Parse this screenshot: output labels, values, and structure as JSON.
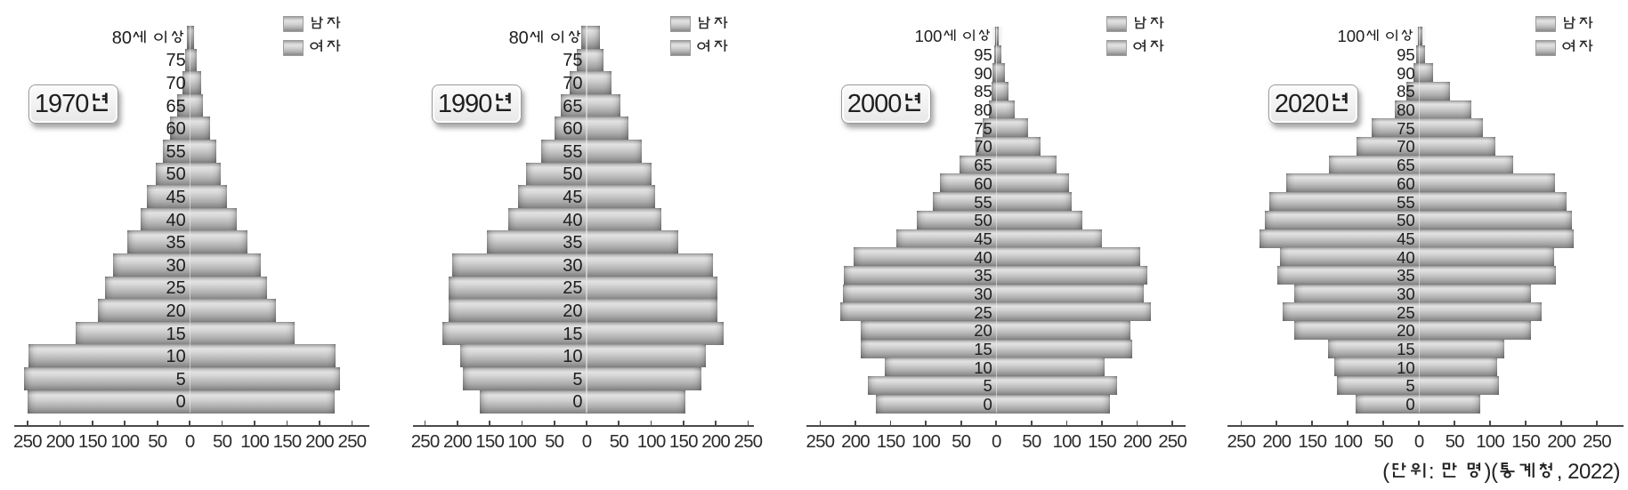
{
  "caption": "(단위: 만 명)(통계청, 2022)",
  "legend": {
    "male_label": "남자",
    "female_label": "여자"
  },
  "axis": {
    "tick_labels": [
      "250",
      "200",
      "150",
      "100",
      "50",
      "0",
      "50",
      "100",
      "150",
      "200",
      "250"
    ],
    "tick_step": 50,
    "x_max": 250,
    "unit_label": "만 명"
  },
  "chart_data": [
    {
      "type": "bar",
      "subtype": "population-pyramid",
      "title": "1970년",
      "xlim": [
        -250,
        250
      ],
      "categories": [
        "0",
        "5",
        "10",
        "15",
        "20",
        "25",
        "30",
        "35",
        "40",
        "45",
        "50",
        "55",
        "60",
        "65",
        "70",
        "75",
        "80세 이상"
      ],
      "series": [
        {
          "name": "남자",
          "side": "left",
          "values": [
            250,
            256,
            249,
            176,
            142,
            131,
            118,
            97,
            76,
            66,
            52,
            42,
            30,
            19,
            12,
            7,
            4
          ]
        },
        {
          "name": "여자",
          "side": "right",
          "values": [
            224,
            232,
            225,
            161,
            133,
            119,
            109,
            89,
            73,
            57,
            48,
            41,
            31,
            21,
            17,
            11,
            7
          ]
        }
      ]
    },
    {
      "type": "bar",
      "subtype": "population-pyramid",
      "title": "1990년",
      "xlim": [
        -250,
        250
      ],
      "categories": [
        "0",
        "5",
        "10",
        "15",
        "20",
        "25",
        "30",
        "35",
        "40",
        "45",
        "50",
        "55",
        "60",
        "65",
        "70",
        "75",
        "80세 이상"
      ],
      "series": [
        {
          "name": "남자",
          "side": "left",
          "values": [
            166,
            191,
            196,
            224,
            213,
            214,
            208,
            155,
            122,
            106,
            94,
            70,
            49,
            40,
            26,
            15,
            8
          ]
        },
        {
          "name": "여자",
          "side": "right",
          "values": [
            153,
            178,
            185,
            212,
            202,
            203,
            196,
            142,
            116,
            106,
            101,
            85,
            65,
            52,
            38,
            26,
            20
          ]
        }
      ]
    },
    {
      "type": "bar",
      "subtype": "population-pyramid",
      "title": "2000년",
      "xlim": [
        -250,
        250
      ],
      "categories": [
        "0",
        "5",
        "10",
        "15",
        "20",
        "25",
        "30",
        "35",
        "40",
        "45",
        "50",
        "55",
        "60",
        "65",
        "70",
        "75",
        "80",
        "85",
        "90",
        "95",
        "100세 이상"
      ],
      "series": [
        {
          "name": "남자",
          "side": "left",
          "values": [
            171,
            182,
            159,
            192,
            193,
            221,
            218,
            216,
            202,
            142,
            113,
            90,
            80,
            52,
            29,
            19,
            11,
            7,
            5,
            3,
            2
          ]
        },
        {
          "name": "여자",
          "side": "right",
          "values": [
            161,
            171,
            154,
            193,
            191,
            220,
            210,
            215,
            205,
            150,
            122,
            107,
            103,
            85,
            63,
            45,
            26,
            18,
            12,
            7,
            4
          ]
        }
      ]
    },
    {
      "type": "bar",
      "subtype": "population-pyramid",
      "title": "2020년",
      "xlim": [
        -250,
        250
      ],
      "categories": [
        "0",
        "5",
        "10",
        "15",
        "20",
        "25",
        "30",
        "35",
        "40",
        "45",
        "50",
        "55",
        "60",
        "65",
        "70",
        "75",
        "80",
        "85",
        "90",
        "95",
        "100세 이상"
      ],
      "series": [
        {
          "name": "남자",
          "side": "left",
          "values": [
            89,
            116,
            119,
            128,
            175,
            192,
            176,
            199,
            195,
            224,
            217,
            211,
            187,
            127,
            88,
            67,
            34,
            18,
            8,
            4,
            2
          ]
        },
        {
          "name": "여자",
          "side": "right",
          "values": [
            86,
            112,
            110,
            120,
            158,
            173,
            157,
            192,
            190,
            218,
            215,
            207,
            191,
            133,
            107,
            90,
            73,
            43,
            20,
            8,
            5
          ]
        }
      ]
    }
  ]
}
